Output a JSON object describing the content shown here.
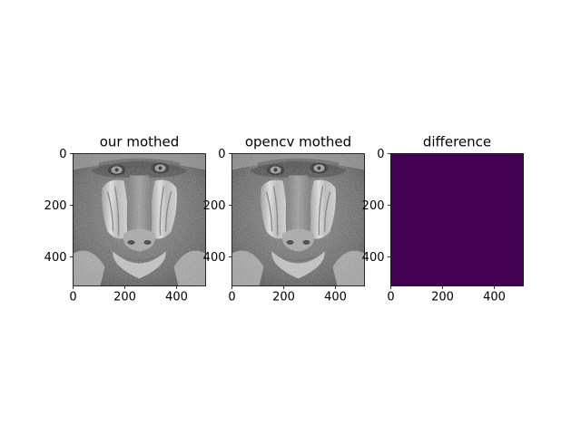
{
  "figure": {
    "background": "#ffffff"
  },
  "chart_data": [
    {
      "type": "heatmap",
      "title": "our mothed",
      "colormap": "gray",
      "content": "grayscale image (mandrill face)",
      "x_ticks": [
        0,
        200,
        400
      ],
      "y_ticks": [
        0,
        200,
        400
      ],
      "xlim": [
        0,
        512
      ],
      "ylim": [
        512,
        0
      ]
    },
    {
      "type": "heatmap",
      "title": "opencv mothed",
      "colormap": "gray",
      "content": "grayscale image (mandrill face)",
      "x_ticks": [
        0,
        200,
        400
      ],
      "y_ticks": [
        0,
        200,
        400
      ],
      "xlim": [
        0,
        512
      ],
      "ylim": [
        512,
        0
      ]
    },
    {
      "type": "heatmap",
      "title": "difference",
      "colormap": "viridis",
      "fill_color": "#440154",
      "value": 0,
      "x_ticks": [
        0,
        200,
        400
      ],
      "y_ticks": [
        0,
        200,
        400
      ],
      "xlim": [
        0,
        512
      ],
      "ylim": [
        512,
        0
      ]
    }
  ]
}
